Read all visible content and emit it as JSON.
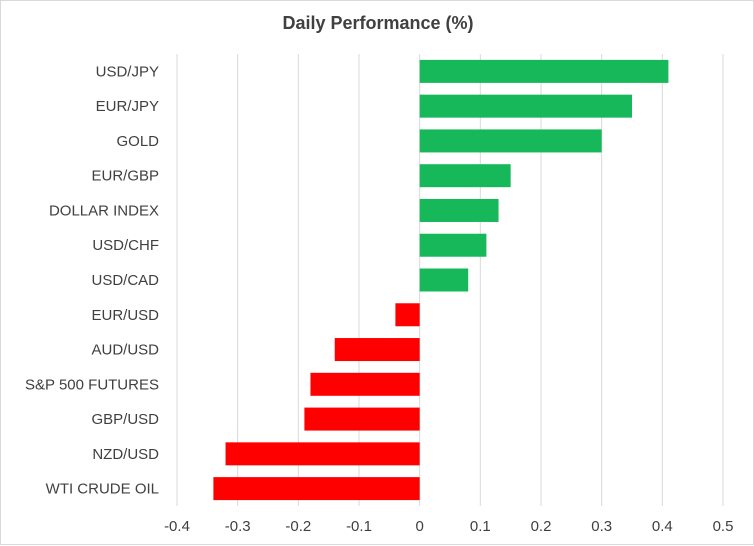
{
  "chart_data": {
    "type": "bar",
    "orientation": "horizontal",
    "title": "Daily Performance (%)",
    "xlabel": "",
    "ylabel": "",
    "xlim": [
      -0.4,
      0.5
    ],
    "xticks": [
      "-0.4",
      "-0.3",
      "-0.2",
      "-0.1",
      "0",
      "0.1",
      "0.2",
      "0.3",
      "0.4",
      "0.5"
    ],
    "grid": "vertical",
    "legend": "none",
    "colors": {
      "positive": "#16b85a",
      "negative": "#ff0000",
      "grid": "#d9d9d9",
      "text": "#404040"
    },
    "categories": [
      "USD/JPY",
      "EUR/JPY",
      "GOLD",
      "EUR/GBP",
      "DOLLAR INDEX",
      "USD/CHF",
      "USD/CAD",
      "EUR/USD",
      "AUD/USD",
      "S&P 500 FUTURES",
      "GBP/USD",
      "NZD/USD",
      "WTI CRUDE OIL"
    ],
    "values": [
      0.41,
      0.35,
      0.3,
      0.15,
      0.13,
      0.11,
      0.08,
      -0.04,
      -0.14,
      -0.18,
      -0.19,
      -0.32,
      -0.34
    ]
  }
}
